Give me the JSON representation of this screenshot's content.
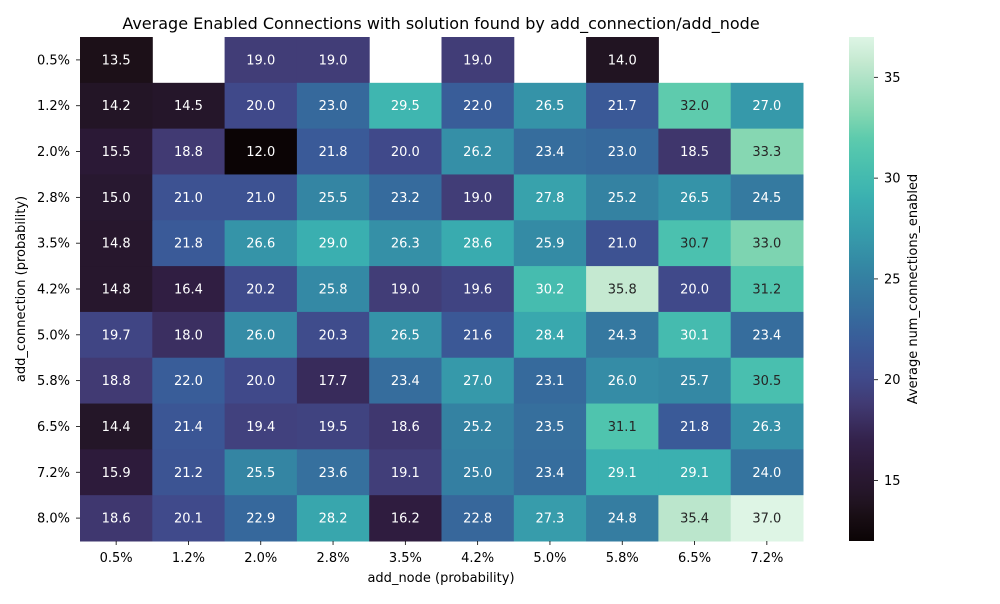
{
  "chart_data": {
    "type": "heatmap",
    "title": "Average Enabled Connections with solution found by add_connection/add_node",
    "xlabel": "add_node (probability)",
    "ylabel": "add_connection (probability)",
    "x_categories": [
      "0.5%",
      "1.2%",
      "2.0%",
      "2.8%",
      "3.5%",
      "4.2%",
      "5.0%",
      "5.8%",
      "6.5%",
      "7.2%"
    ],
    "y_categories": [
      "0.5%",
      "1.2%",
      "2.0%",
      "2.8%",
      "3.5%",
      "4.2%",
      "5.0%",
      "5.8%",
      "6.5%",
      "7.2%",
      "8.0%"
    ],
    "values": [
      [
        13.5,
        null,
        19.0,
        19.0,
        null,
        19.0,
        null,
        14.0,
        null,
        null
      ],
      [
        14.2,
        14.5,
        20.0,
        23.0,
        29.5,
        22.0,
        26.5,
        21.7,
        32.0,
        27.0
      ],
      [
        15.5,
        18.8,
        12.0,
        21.8,
        20.0,
        26.2,
        23.4,
        23.0,
        18.5,
        33.3
      ],
      [
        15.0,
        21.0,
        21.0,
        25.5,
        23.2,
        19.0,
        27.8,
        25.2,
        26.5,
        24.5
      ],
      [
        14.8,
        21.8,
        26.6,
        29.0,
        26.3,
        28.6,
        25.9,
        21.0,
        30.7,
        33.0
      ],
      [
        14.8,
        16.4,
        20.2,
        25.8,
        19.0,
        19.6,
        30.2,
        35.8,
        20.0,
        31.2
      ],
      [
        19.7,
        18.0,
        26.0,
        20.3,
        26.5,
        21.6,
        28.4,
        24.3,
        30.1,
        23.4
      ],
      [
        18.8,
        22.0,
        20.0,
        17.7,
        23.4,
        27.0,
        23.1,
        26.0,
        25.7,
        30.5
      ],
      [
        14.4,
        21.4,
        19.4,
        19.5,
        18.6,
        25.2,
        23.5,
        31.1,
        21.8,
        26.3
      ],
      [
        15.9,
        21.2,
        25.5,
        23.6,
        19.1,
        25.0,
        23.4,
        29.1,
        29.1,
        24.0
      ],
      [
        18.6,
        20.1,
        22.9,
        28.2,
        16.2,
        22.8,
        27.3,
        24.8,
        35.4,
        37.0
      ]
    ],
    "colormap": "mako",
    "color_range": [
      12.0,
      37.0
    ],
    "colorbar": {
      "label": "Average num_connections_enabled",
      "ticks": [
        15,
        20,
        25,
        30,
        35
      ]
    },
    "annotations": true,
    "missing_cells_color": "#ffffff"
  }
}
